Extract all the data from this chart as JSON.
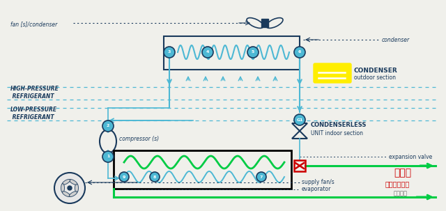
{
  "bg_color": "#f0f0eb",
  "figsize": [
    6.4,
    3.03
  ],
  "dpi": 100,
  "dark_blue": "#1a3a5c",
  "light_blue": "#4db8d4",
  "green": "#00cc44",
  "red": "#cc0000",
  "yellow": "#ffee00",
  "gray": "#888888",
  "labels": {
    "fan_condenser": "fan [s]/condenser",
    "condenser": "condenser",
    "condenser_section": "CONDENSER",
    "outdoor": "outdoor section",
    "high_pressure": "HIGH-PRESSURE\n REFRIGERANT",
    "low_pressure": "LOW-PRESSURE\n REFRIGERANT",
    "compressor": "compressor (s)",
    "condenserless": "CONDENSERLESS",
    "unit_indoor": "UNIT indoor section",
    "expansion": "expansion valve",
    "evaporator": "evaporator",
    "supply_fan": "supply fan/s",
    "chinese1": "冷冻水",
    "chinese2": "来自冷水机组",
    "chinese3": "制冷百科"
  }
}
